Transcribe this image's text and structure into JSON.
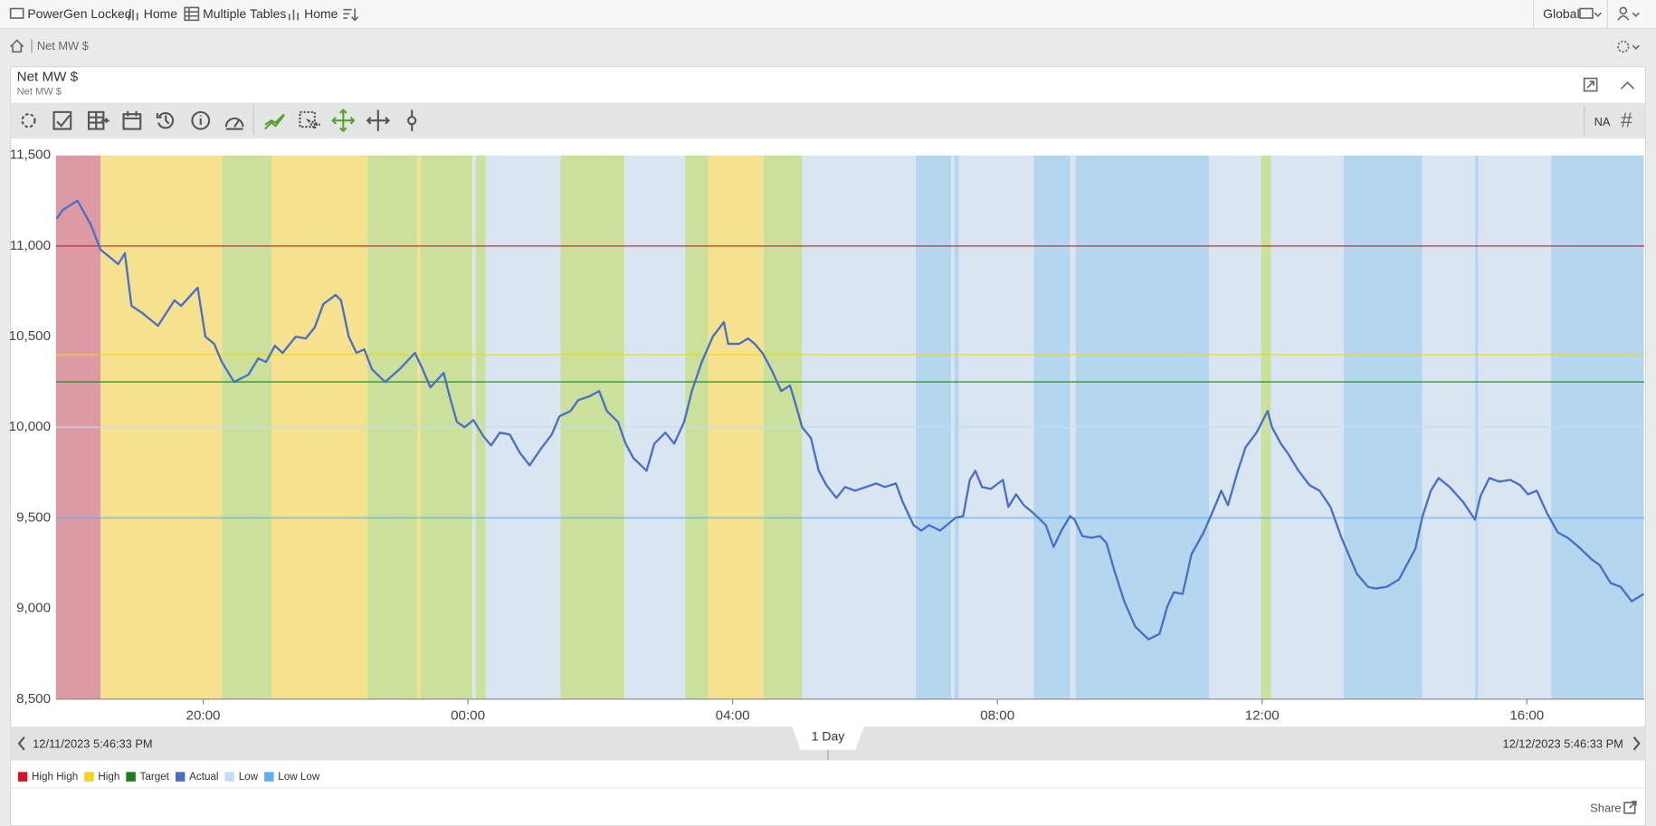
{
  "nav": {
    "items": [
      "PowerGen Locked",
      "Home",
      "Multiple Tables",
      "Home"
    ],
    "scope": "Global"
  },
  "breadcrumb": "Net MW $",
  "panel": {
    "title": "Net MW $",
    "subtitle": "Net MW $",
    "toolbar_na": "NA",
    "toolbar_hash": "#"
  },
  "range": {
    "span": "1 Day"
  },
  "footer": {
    "share": "Share"
  },
  "chart_data": {
    "type": "line",
    "xlim": [
      "12/11/2023 5:46:33 PM",
      "12/12/2023 5:46:33 PM"
    ],
    "xticks": [
      "20:00",
      "00:00",
      "04:00",
      "08:00",
      "12:00",
      "16:00"
    ],
    "ylim": [
      8500,
      11500
    ],
    "yticks": [
      {
        "value": 8500,
        "label": "8,500"
      },
      {
        "value": 9000,
        "label": "9,000"
      },
      {
        "value": 9500,
        "label": "9,500"
      },
      {
        "value": 10000,
        "label": "10,000"
      },
      {
        "value": 10500,
        "label": "10,500"
      },
      {
        "value": 11000,
        "label": "11,000"
      },
      {
        "value": 11500,
        "label": "11,500"
      }
    ],
    "grid": false,
    "legend": "bottom-left",
    "x": [
      "17:47",
      "17:53",
      "18:06",
      "18:18",
      "18:27",
      "18:43",
      "18:49",
      "18:55",
      "19:05",
      "19:19",
      "19:34",
      "19:40",
      "19:55",
      "20:02",
      "20:10",
      "20:17",
      "20:28",
      "20:41",
      "20:50",
      "20:57",
      "21:05",
      "21:12",
      "21:24",
      "21:33",
      "21:41",
      "21:49",
      "22:00",
      "22:05",
      "22:12",
      "22:19",
      "22:26",
      "22:33",
      "22:45",
      "22:58",
      "23:12",
      "23:19",
      "23:26",
      "23:38",
      "23:43",
      "23:50",
      "23:57",
      "00:05",
      "00:14",
      "00:21",
      "00:29",
      "00:38",
      "00:47",
      "00:56",
      "01:06",
      "01:16",
      "01:23",
      "01:33",
      "01:40",
      "01:50",
      "01:59",
      "02:06",
      "02:16",
      "02:23",
      "02:30",
      "02:42",
      "02:49",
      "02:59",
      "03:07",
      "03:16",
      "03:23",
      "03:32",
      "03:42",
      "03:52",
      "03:56",
      "04:06",
      "04:14",
      "04:20",
      "04:27",
      "04:35",
      "04:44",
      "04:52",
      "04:56",
      "05:03",
      "05:11",
      "05:18",
      "05:25",
      "05:34",
      "05:42",
      "05:51",
      "06:01",
      "06:10",
      "06:18",
      "06:28",
      "06:34",
      "06:44",
      "06:51",
      "06:58",
      "07:08",
      "07:16",
      "07:22",
      "07:29",
      "07:35",
      "07:40",
      "07:46",
      "07:54",
      "08:05",
      "08:10",
      "08:17",
      "08:24",
      "08:32",
      "08:44",
      "08:51",
      "08:58",
      "09:06",
      "09:10",
      "09:17",
      "09:25",
      "09:33",
      "09:39",
      "09:46",
      "09:55",
      "10:05",
      "10:17",
      "10:27",
      "10:34",
      "10:40",
      "10:48",
      "10:56",
      "11:07",
      "11:17",
      "11:23",
      "11:29",
      "11:38",
      "11:45",
      "11:55",
      "12:05",
      "12:09",
      "12:17",
      "12:24",
      "12:33",
      "12:43",
      "12:52",
      "13:02",
      "13:12",
      "13:26",
      "13:36",
      "13:43",
      "13:53",
      "14:04",
      "14:11",
      "14:19",
      "14:25",
      "14:33",
      "14:40",
      "14:50",
      "15:02",
      "15:13",
      "15:18",
      "15:26",
      "15:35",
      "15:45",
      "15:54",
      "16:01",
      "16:09",
      "16:18",
      "16:28",
      "16:37",
      "16:47",
      "16:59",
      "17:06",
      "17:16",
      "17:25",
      "17:35",
      "17:46"
    ],
    "series": [
      {
        "name": "High High",
        "color": "#d0152b",
        "value": 11000
      },
      {
        "name": "High",
        "color": "#f7d21a",
        "value": 10400
      },
      {
        "name": "Target",
        "color": "#1a7e1a",
        "value": 10250
      },
      {
        "name": "Actual",
        "color": "#4a6fc7",
        "values": [
          11150,
          11200,
          11250,
          11120,
          10980,
          10900,
          10960,
          10670,
          10630,
          10560,
          10700,
          10670,
          10770,
          10500,
          10460,
          10360,
          10250,
          10290,
          10380,
          10360,
          10450,
          10410,
          10500,
          10490,
          10550,
          10680,
          10730,
          10700,
          10500,
          10410,
          10430,
          10320,
          10250,
          10320,
          10410,
          10320,
          10220,
          10300,
          10180,
          10030,
          10000,
          10040,
          9950,
          9900,
          9970,
          9960,
          9860,
          9790,
          9880,
          9960,
          10060,
          10090,
          10150,
          10170,
          10200,
          10090,
          10030,
          9910,
          9830,
          9760,
          9910,
          9970,
          9910,
          10030,
          10200,
          10360,
          10500,
          10580,
          10460,
          10460,
          10490,
          10460,
          10410,
          10320,
          10200,
          10230,
          10150,
          10000,
          9940,
          9760,
          9680,
          9610,
          9670,
          9650,
          9670,
          9690,
          9670,
          9690,
          9590,
          9460,
          9430,
          9460,
          9430,
          9470,
          9500,
          9510,
          9710,
          9760,
          9670,
          9660,
          9710,
          9560,
          9630,
          9570,
          9530,
          9460,
          9340,
          9430,
          9510,
          9490,
          9400,
          9390,
          9400,
          9360,
          9210,
          9040,
          8900,
          8830,
          8860,
          9010,
          9090,
          9080,
          9300,
          9420,
          9560,
          9650,
          9570,
          9760,
          9890,
          9970,
          10090,
          10000,
          9910,
          9850,
          9760,
          9680,
          9650,
          9560,
          9390,
          9190,
          9120,
          9110,
          9120,
          9160,
          9240,
          9330,
          9500,
          9650,
          9720,
          9670,
          9590,
          9490,
          9620,
          9720,
          9700,
          9710,
          9680,
          9630,
          9650,
          9530,
          9420,
          9390,
          9340,
          9270,
          9240,
          9140,
          9120,
          9040,
          9080
        ]
      },
      {
        "name": "Low",
        "color": "#c3def5",
        "value": 10000
      },
      {
        "name": "Low Low",
        "color": "#5eaef0",
        "value": 9500
      }
    ],
    "bands": [
      {
        "start": "17:46",
        "end": "18:27",
        "color": "#dc9aa5"
      },
      {
        "start": "18:27",
        "end": "20:17",
        "color": "#f5e18e"
      },
      {
        "start": "20:17",
        "end": "21:02",
        "color": "#cbe09b"
      },
      {
        "start": "21:02",
        "end": "22:29",
        "color": "#f5e18e"
      },
      {
        "start": "22:29",
        "end": "23:14",
        "color": "#cbe09b"
      },
      {
        "start": "23:14",
        "end": "23:17",
        "color": "#f5e18e"
      },
      {
        "start": "23:17",
        "end": "00:04",
        "color": "#cbe09b"
      },
      {
        "start": "00:04",
        "end": "00:07",
        "color": "#d9e6f1"
      },
      {
        "start": "00:07",
        "end": "00:16",
        "color": "#cbe09b"
      },
      {
        "start": "00:16",
        "end": "01:24",
        "color": "#d9e6f1"
      },
      {
        "start": "01:24",
        "end": "02:22",
        "color": "#cbe09b"
      },
      {
        "start": "02:22",
        "end": "03:17",
        "color": "#d9e6f1"
      },
      {
        "start": "03:17",
        "end": "03:38",
        "color": "#cbe09b"
      },
      {
        "start": "03:38",
        "end": "04:28",
        "color": "#f5e18e"
      },
      {
        "start": "04:28",
        "end": "05:03",
        "color": "#cbe09b"
      },
      {
        "start": "05:03",
        "end": "06:46",
        "color": "#d9e6f1"
      },
      {
        "start": "06:46",
        "end": "07:18",
        "color": "#b5d6ef"
      },
      {
        "start": "07:18",
        "end": "07:21",
        "color": "#d9e6f1"
      },
      {
        "start": "07:21",
        "end": "07:25",
        "color": "#b5d6ef"
      },
      {
        "start": "07:25",
        "end": "08:33",
        "color": "#d9e6f1"
      },
      {
        "start": "08:33",
        "end": "09:06",
        "color": "#b5d6ef"
      },
      {
        "start": "09:06",
        "end": "09:11",
        "color": "#d9e6f1"
      },
      {
        "start": "09:11",
        "end": "11:12",
        "color": "#b5d6ef"
      },
      {
        "start": "11:12",
        "end": "11:59",
        "color": "#d9e6f1"
      },
      {
        "start": "11:59",
        "end": "12:08",
        "color": "#cbe09b"
      },
      {
        "start": "12:08",
        "end": "13:14",
        "color": "#d9e6f1"
      },
      {
        "start": "13:14",
        "end": "14:25",
        "color": "#b5d6ef"
      },
      {
        "start": "14:25",
        "end": "15:13",
        "color": "#d9e6f1"
      },
      {
        "start": "15:13",
        "end": "15:16",
        "color": "#b5d6ef"
      },
      {
        "start": "15:16",
        "end": "16:22",
        "color": "#d9e6f1"
      },
      {
        "start": "16:22",
        "end": "17:46",
        "color": "#b5d6ef"
      }
    ]
  }
}
